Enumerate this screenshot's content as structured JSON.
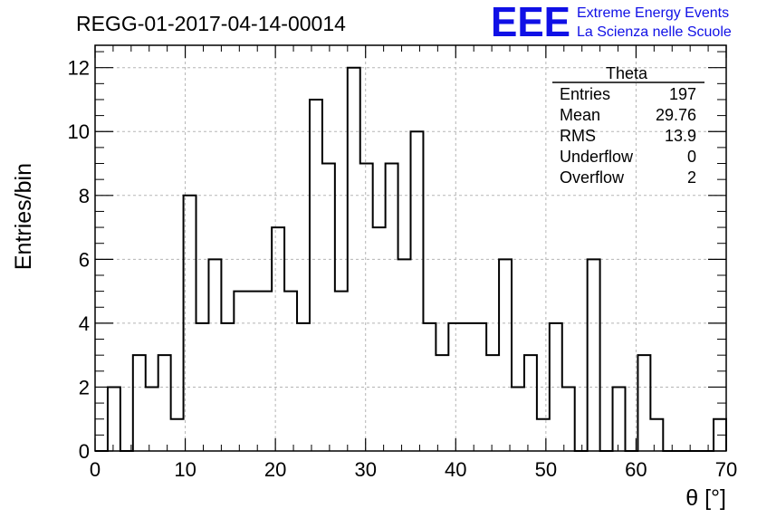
{
  "chart_data": {
    "type": "bar",
    "style": "step-histogram",
    "title": "REGG-01-2017-04-14-00014",
    "xlabel": "θ [°]",
    "ylabel": "Entries/bin",
    "xlim": [
      0,
      70
    ],
    "ylim": [
      0,
      12.7
    ],
    "grid": true,
    "bin_width": 1.4,
    "x_ticks": [
      "0",
      "10",
      "20",
      "30",
      "40",
      "50",
      "60",
      "70"
    ],
    "y_ticks": [
      "0",
      "2",
      "4",
      "6",
      "8",
      "10",
      "12"
    ],
    "values": [
      0,
      2,
      0,
      3,
      2,
      3,
      1,
      8,
      4,
      6,
      4,
      5,
      5,
      5,
      7,
      5,
      4,
      11,
      9,
      5,
      12,
      9,
      7,
      9,
      6,
      10,
      4,
      3,
      4,
      4,
      4,
      3,
      6,
      2,
      3,
      1,
      4,
      2,
      0,
      6,
      0,
      2,
      0,
      3,
      1,
      0,
      0,
      0,
      0,
      1
    ]
  },
  "logo": {
    "mark": "EEE",
    "line1": "Extreme Energy Events",
    "line2": "La Scienza nelle Scuole",
    "color": "#1010e6"
  },
  "stats": {
    "title": "Theta",
    "rows": [
      {
        "label": "Entries",
        "value": "197"
      },
      {
        "label": "Mean",
        "value": "29.76"
      },
      {
        "label": "RMS",
        "value": "13.9"
      },
      {
        "label": "Underflow",
        "value": "0"
      },
      {
        "label": "Overflow",
        "value": "2"
      }
    ]
  }
}
